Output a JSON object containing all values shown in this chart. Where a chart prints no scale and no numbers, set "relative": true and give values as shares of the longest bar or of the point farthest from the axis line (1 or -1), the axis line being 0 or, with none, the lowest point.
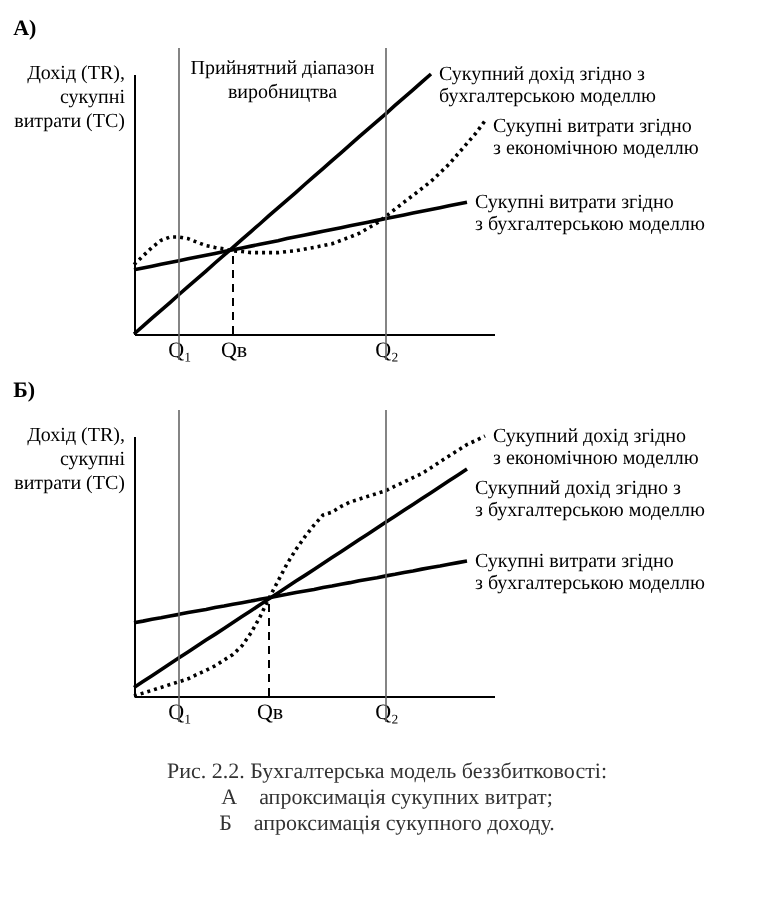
{
  "chart_data": [
    {
      "type": "line",
      "title": "А)",
      "ylabel": "Дохід (TR), сукупні витрати (TC)",
      "relative": true,
      "tick_labels": "x",
      "grid": false,
      "marker": "none",
      "categories": [
        null,
        null,
        null,
        null,
        null,
        "Q₁",
        null,
        null,
        null,
        null,
        null,
        "Qв",
        null,
        null,
        null,
        null,
        null,
        null,
        null,
        null,
        null,
        null,
        null,
        null,
        null,
        null,
        null,
        null,
        "Q₂",
        null,
        null,
        null,
        null,
        null,
        null,
        null,
        null,
        null,
        null,
        null,
        null
      ],
      "series": [
        {
          "name": "Сукупний дохід згідно з бухгалтерською моделлю",
          "color": "#000000",
          "line_style": "solid",
          "values": [
            0,
            0.03,
            0.061,
            0.091,
            0.121,
            0.152,
            0.182,
            0.212,
            0.242,
            0.273,
            0.303,
            0.333,
            0.364,
            0.394,
            0.424,
            0.455,
            0.485,
            0.515,
            0.545,
            0.576,
            0.606,
            0.636,
            0.667,
            0.697,
            0.727,
            0.758,
            0.788,
            0.818,
            0.848,
            0.879,
            0.909,
            0.939,
            0.97,
            1,
            null,
            null,
            null,
            null,
            null,
            null,
            null
          ]
        },
        {
          "name": "Сукупні витрати згідно з економічною моделлю",
          "color": "#000000",
          "line_style": "dotted",
          "values": [
            0.267,
            0.3,
            0.333,
            0.36,
            0.373,
            0.373,
            0.367,
            0.353,
            0.34,
            0.333,
            0.327,
            0.32,
            0.317,
            0.313,
            0.313,
            0.313,
            0.313,
            0.317,
            0.32,
            0.327,
            0.333,
            0.34,
            0.347,
            0.36,
            0.373,
            0.387,
            0.407,
            0.427,
            0.453,
            0.48,
            0.507,
            0.533,
            0.56,
            0.587,
            0.62,
            0.653,
            0.693,
            0.733,
            0.773,
            0.82,
            null
          ]
        },
        {
          "name": "Сукупні витрати згідно з бухгалтерською моделлю",
          "color": "#000000",
          "line_style": "solid",
          "values": [
            0.247,
            0.254,
            0.261,
            0.268,
            0.275,
            0.282,
            0.289,
            0.296,
            0.303,
            0.31,
            0.317,
            0.324,
            0.331,
            0.338,
            0.345,
            0.352,
            0.359,
            0.367,
            0.374,
            0.381,
            0.388,
            0.395,
            0.402,
            0.409,
            0.416,
            0.423,
            0.43,
            0.437,
            0.444,
            0.451,
            0.458,
            0.465,
            0.472,
            0.479,
            0.486,
            0.493,
            0.5,
            0.507,
            null,
            null,
            null
          ]
        }
      ],
      "ref_lines": [
        {
          "axis": "x",
          "value": "Q₁",
          "color": "#666666",
          "line_style": "solid"
        },
        {
          "axis": "x",
          "value": "Qв",
          "line_style": "dashed",
          "color": "#000000"
        },
        {
          "axis": "x",
          "value": "Q₂",
          "color": "#666666",
          "line_style": "solid"
        }
      ],
      "annotations": [
        "Прийнятний діапазон виробництва"
      ]
    },
    {
      "type": "line",
      "title": "Б)",
      "ylabel": "Дохід (TR), сукупні витрати (TC)",
      "relative": true,
      "tick_labels": "x",
      "grid": false,
      "marker": "none",
      "categories": [
        null,
        null,
        null,
        null,
        null,
        "Q₁",
        null,
        null,
        null,
        null,
        null,
        null,
        null,
        null,
        null,
        "Qв",
        null,
        null,
        null,
        null,
        null,
        null,
        null,
        null,
        null,
        null,
        null,
        null,
        "Q₂",
        null,
        null,
        null,
        null,
        null,
        null,
        null,
        null,
        null,
        null,
        null,
        null
      ],
      "series": [
        {
          "name": "Сукупний дохід згідно з економічною моделлю",
          "color": "#000000",
          "line_style": "dotted",
          "values": [
            0,
            0.011,
            0.022,
            0.033,
            0.044,
            0.055,
            0.066,
            0.083,
            0.099,
            0.116,
            0.138,
            0.16,
            0.193,
            0.243,
            0.304,
            0.376,
            0.442,
            0.508,
            0.564,
            0.613,
            0.657,
            0.696,
            0.707,
            0.729,
            0.746,
            0.757,
            0.768,
            0.779,
            0.79,
            0.807,
            0.823,
            0.84,
            0.856,
            0.878,
            0.901,
            0.923,
            0.945,
            0.967,
            0.983,
            1,
            null
          ]
        },
        {
          "name": "Сукупний дохід згідно з з бухгалтерською моделлю",
          "color": "#000000",
          "line_style": "solid",
          "values": [
            0.033,
            0.056,
            0.078,
            0.101,
            0.124,
            0.147,
            0.169,
            0.192,
            0.215,
            0.237,
            0.26,
            0.283,
            0.306,
            0.328,
            0.351,
            0.374,
            0.396,
            0.419,
            0.442,
            0.464,
            0.487,
            0.51,
            0.533,
            0.555,
            0.578,
            0.601,
            0.623,
            0.646,
            0.669,
            0.691,
            0.714,
            0.737,
            0.76,
            0.782,
            0.805,
            0.828,
            0.85,
            0.873,
            null,
            null,
            null
          ]
        },
        {
          "name": "Сукупні витрати згідно з бухгалтерською моделлю",
          "color": "#000000",
          "line_style": "solid",
          "values": [
            0.282,
            0.288,
            0.295,
            0.301,
            0.308,
            0.314,
            0.321,
            0.327,
            0.333,
            0.34,
            0.346,
            0.353,
            0.359,
            0.365,
            0.372,
            0.378,
            0.385,
            0.391,
            0.398,
            0.404,
            0.41,
            0.417,
            0.423,
            0.43,
            0.436,
            0.443,
            0.449,
            0.455,
            0.462,
            0.468,
            0.475,
            0.481,
            0.488,
            0.494,
            0.5,
            0.507,
            0.513,
            0.519,
            null,
            null,
            null
          ]
        }
      ],
      "ref_lines": [
        {
          "axis": "x",
          "value": "Q₁",
          "color": "#666666",
          "line_style": "solid"
        },
        {
          "axis": "x",
          "value": "Qв",
          "line_style": "dashed",
          "color": "#000000"
        },
        {
          "axis": "x",
          "value": "Q₂",
          "color": "#666666",
          "line_style": "solid"
        }
      ],
      "annotations": [
        "Рис. 2.2. Бухгалтерська модель беззбитковості:",
        "А    апроксимація сукупних витрат;",
        "Б    апроксимація сукупного доходу."
      ]
    }
  ]
}
